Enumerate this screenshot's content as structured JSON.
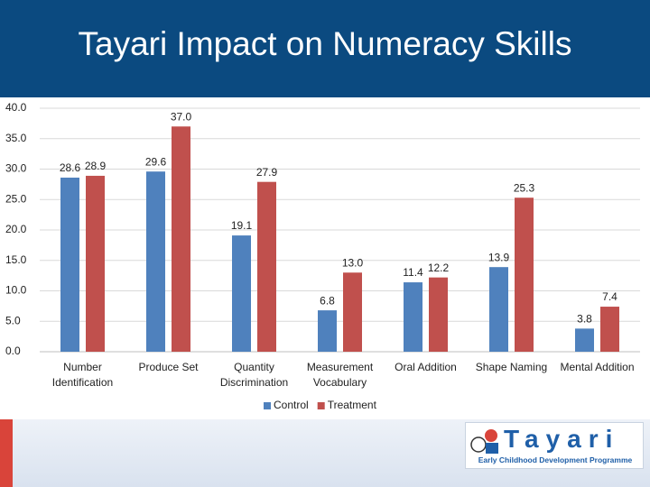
{
  "chart_data": {
    "type": "bar",
    "title": "Tayari Impact on Numeracy Skills",
    "categories": [
      "Number Identification",
      "Produce Set",
      "Quantity Discrimination",
      "Measurement Vocabulary",
      "Oral Addition",
      "Shape Naming",
      "Mental Addition"
    ],
    "series": [
      {
        "name": "Control",
        "color": "#4f81bd",
        "values": [
          28.6,
          29.6,
          19.1,
          6.8,
          11.4,
          13.9,
          3.8
        ],
        "value_labels": [
          "28.6",
          "29.6",
          "19.1",
          "6.8",
          "11.4",
          "13.9",
          "3.8"
        ]
      },
      {
        "name": "Treatment",
        "color": "#c0504d",
        "values": [
          28.9,
          37.0,
          27.9,
          13.0,
          12.2,
          25.3,
          7.4
        ],
        "value_labels": [
          "28.9",
          "37.0",
          "27.9",
          "13.0",
          "12.2",
          "25.3",
          "7.4"
        ]
      }
    ],
    "ylim": [
      0,
      40
    ],
    "yticks": [
      {
        "value": 0,
        "label": "0.0"
      },
      {
        "value": 5,
        "label": "5.0"
      },
      {
        "value": 10,
        "label": "10.0"
      },
      {
        "value": 15,
        "label": "15.0"
      },
      {
        "value": 20,
        "label": "20.0"
      },
      {
        "value": 25,
        "label": "25.0"
      },
      {
        "value": 30,
        "label": "30.0"
      },
      {
        "value": 35,
        "label": "35.0"
      },
      {
        "value": 40,
        "label": "40.0"
      }
    ],
    "grid": true,
    "legend": "bottom"
  },
  "logo": {
    "name": "Tayari",
    "subtitle": "Early Childhood Development Programme"
  }
}
